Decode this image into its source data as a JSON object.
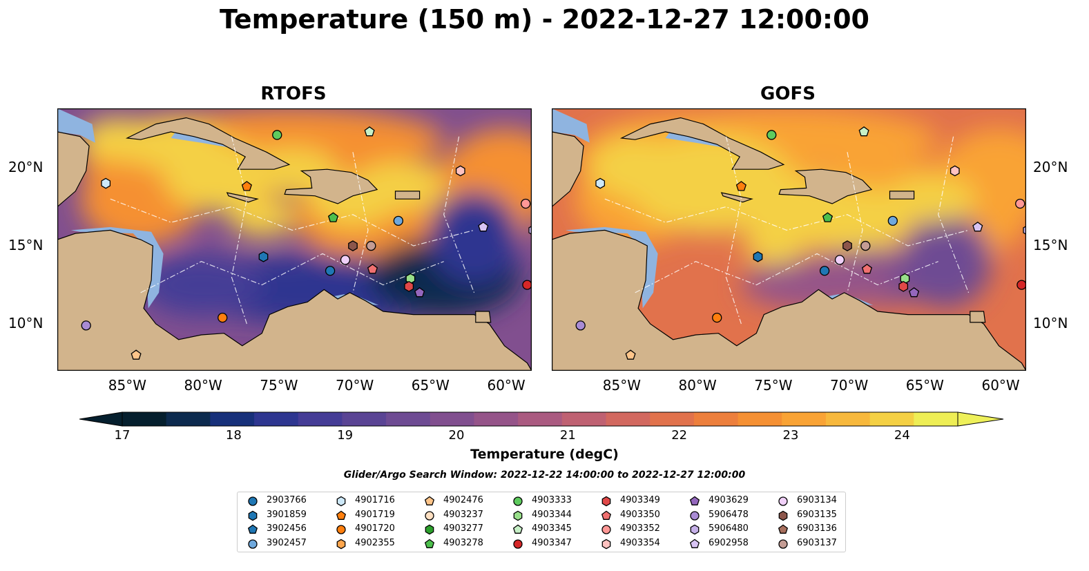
{
  "title": "Temperature (150 m) - 2022-12-27 12:00:00",
  "panels": [
    {
      "title": "RTOFS",
      "warm_index": 0
    },
    {
      "title": "GOFS",
      "warm_index": 1
    }
  ],
  "axes": {
    "x_ticks": [
      "85°W",
      "80°W",
      "75°W",
      "70°W",
      "65°W",
      "60°W"
    ],
    "y_ticks": [
      "20°N",
      "15°N",
      "10°N"
    ],
    "lon_range": [
      -89.5,
      -58.2
    ],
    "lat_range": [
      7,
      23.8
    ]
  },
  "colorbar": {
    "label": "Temperature (degC)",
    "ticks": [
      "17",
      "18",
      "19",
      "20",
      "21",
      "22",
      "23",
      "24"
    ],
    "range": [
      17,
      24.5
    ],
    "colors": [
      "#051f2e",
      "#0c2a4e",
      "#17307a",
      "#2e3690",
      "#453c96",
      "#5a4494",
      "#6e4b93",
      "#814f8f",
      "#955489",
      "#aa5a80",
      "#bf6172",
      "#d2685f",
      "#e1724c",
      "#ed7f3c",
      "#f59033",
      "#f9a335",
      "#f7b83c",
      "#f4d044",
      "#eeee55"
    ],
    "under_color": "#051f2e",
    "over_color": "#eef05a"
  },
  "search_window": "Glider/Argo Search Window: 2022-12-22 14:00:00 to 2022-12-27 12:00:00",
  "land_color": "#d2b48c",
  "shelf_color": "#8fb4e0",
  "chart_data": {
    "type": "heatmap",
    "variable": "Temperature (150 m)",
    "units": "degC",
    "panels": [
      "RTOFS",
      "GOFS"
    ],
    "series": [
      {
        "name": "2903766",
        "shape": "circle",
        "color": "#1f77b4",
        "points": [
          [
            -71.5,
            13.4
          ]
        ]
      },
      {
        "name": "3901859",
        "shape": "hexagon",
        "color": "#1f77b4",
        "points": [
          [
            -75.9,
            14.3
          ]
        ]
      },
      {
        "name": "3902456",
        "shape": "pentagon",
        "color": "#1f77b4",
        "points": []
      },
      {
        "name": "3902457",
        "shape": "circle",
        "color": "#6fa8dc",
        "points": [
          [
            -67.0,
            16.6
          ]
        ]
      },
      {
        "name": "4901716",
        "shape": "hexagon",
        "color": "#cde8f8",
        "points": [
          [
            -86.3,
            19.0
          ]
        ]
      },
      {
        "name": "4901719",
        "shape": "pentagon",
        "color": "#ff7f0e",
        "points": [
          [
            -77.0,
            18.8
          ]
        ]
      },
      {
        "name": "4901720",
        "shape": "circle",
        "color": "#ff7f0e",
        "points": [
          [
            -78.6,
            10.4
          ]
        ]
      },
      {
        "name": "4902355",
        "shape": "hexagon",
        "color": "#ffa64d",
        "points": []
      },
      {
        "name": "4902476",
        "shape": "pentagon",
        "color": "#ffc58a",
        "points": [
          [
            -84.3,
            8.0
          ]
        ]
      },
      {
        "name": "4903237",
        "shape": "circle",
        "color": "#ffe0c2",
        "points": []
      },
      {
        "name": "4903277",
        "shape": "hexagon",
        "color": "#2ca02c",
        "points": []
      },
      {
        "name": "4903278",
        "shape": "pentagon",
        "color": "#4dbf4d",
        "points": [
          [
            -71.3,
            16.8
          ]
        ]
      },
      {
        "name": "4903333",
        "shape": "circle",
        "color": "#5ecb5e",
        "points": [
          [
            -75.0,
            22.1
          ]
        ]
      },
      {
        "name": "4903344",
        "shape": "hexagon",
        "color": "#98df8a",
        "points": [
          [
            -66.2,
            12.9
          ]
        ]
      },
      {
        "name": "4903345",
        "shape": "pentagon",
        "color": "#c7f0c7",
        "points": [
          [
            -68.9,
            22.3
          ]
        ]
      },
      {
        "name": "4903347",
        "shape": "circle",
        "color": "#d62728",
        "points": [
          [
            -58.5,
            12.5
          ]
        ]
      },
      {
        "name": "4903349",
        "shape": "hexagon",
        "color": "#e04848",
        "points": [
          [
            -66.3,
            12.4
          ]
        ]
      },
      {
        "name": "4903350",
        "shape": "pentagon",
        "color": "#f07070",
        "points": [
          [
            -68.7,
            13.5
          ]
        ]
      },
      {
        "name": "4903352",
        "shape": "circle",
        "color": "#ff9896",
        "points": [
          [
            -58.6,
            17.7
          ]
        ]
      },
      {
        "name": "4903354",
        "shape": "hexagon",
        "color": "#ffc2c0",
        "points": [
          [
            -62.9,
            19.8
          ]
        ]
      },
      {
        "name": "4903629",
        "shape": "pentagon",
        "color": "#9467bd",
        "points": [
          [
            -65.6,
            12.0
          ]
        ]
      },
      {
        "name": "5906478",
        "shape": "circle",
        "color": "#a98bd4",
        "points": [
          [
            -87.6,
            9.9
          ]
        ]
      },
      {
        "name": "5906480",
        "shape": "hexagon",
        "color": "#c5b0e8",
        "points": [
          [
            -58.1,
            16.0
          ]
        ]
      },
      {
        "name": "6902958",
        "shape": "pentagon",
        "color": "#d8c4f4",
        "points": [
          [
            -61.4,
            16.2
          ]
        ]
      },
      {
        "name": "6903134",
        "shape": "circle",
        "color": "#f0d0f8",
        "points": [
          [
            -70.5,
            14.1
          ]
        ]
      },
      {
        "name": "6903135",
        "shape": "hexagon",
        "color": "#8c564b",
        "points": [
          [
            -70.0,
            15.0
          ]
        ]
      },
      {
        "name": "6903136",
        "shape": "pentagon",
        "color": "#a8705e",
        "points": []
      },
      {
        "name": "6903137",
        "shape": "circle",
        "color": "#c49c94",
        "points": [
          [
            -68.8,
            15.0
          ]
        ]
      }
    ]
  }
}
